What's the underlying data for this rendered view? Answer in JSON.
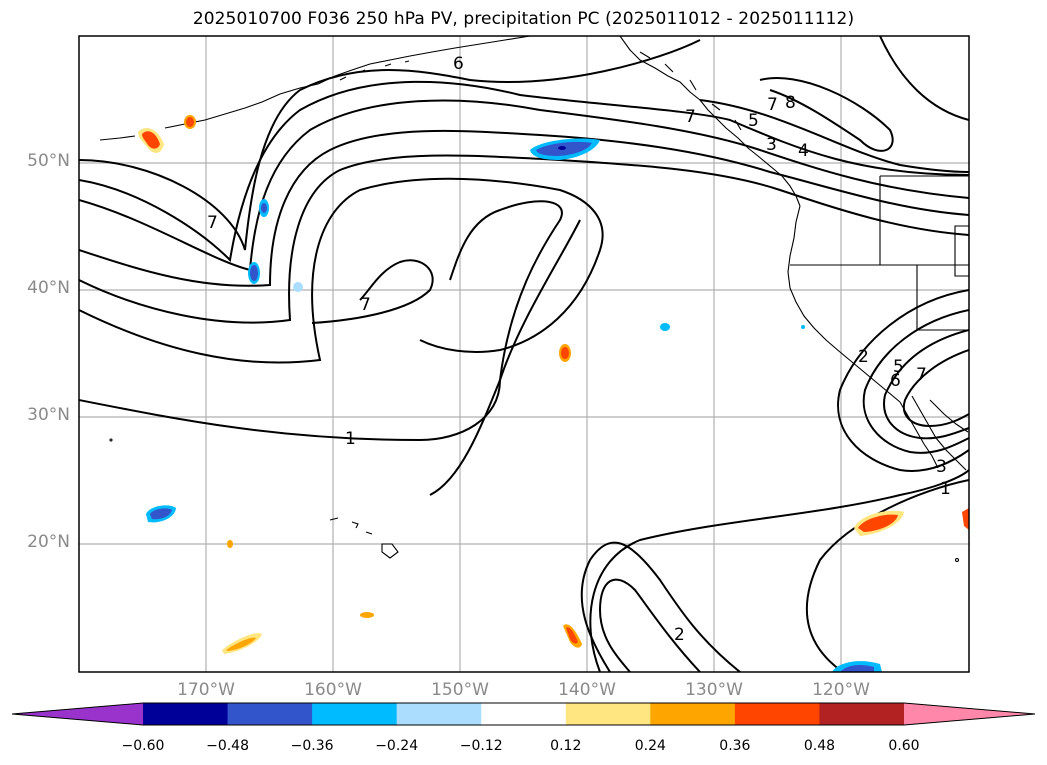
{
  "title": "2025010700 F036 250 hPa PV, precipitation PC (2025011012 - 2025011112)",
  "lat_labels": [
    "50°N",
    "40°N",
    "30°N",
    "20°N"
  ],
  "lon_labels": [
    "170°W",
    "160°W",
    "150°W",
    "140°W",
    "130°W",
    "120°W"
  ],
  "contour_labels": [
    "6",
    "7",
    "7",
    "8",
    "5",
    "3",
    "4",
    "7",
    "7",
    "1",
    "2",
    "5",
    "6",
    "7",
    "2",
    "3",
    "1"
  ],
  "colorbar": {
    "ticks": [
      "−0.60",
      "−0.48",
      "−0.36",
      "−0.24",
      "−0.12",
      "0.12",
      "0.24",
      "0.36",
      "0.48",
      "0.60"
    ],
    "colors": [
      "#9933cc",
      "#000099",
      "#3355cc",
      "#00bbff",
      "#aaddff",
      "#ffffff",
      "#ffe680",
      "#ffa500",
      "#ff4500",
      "#b22222",
      "#ff88aa"
    ]
  }
}
